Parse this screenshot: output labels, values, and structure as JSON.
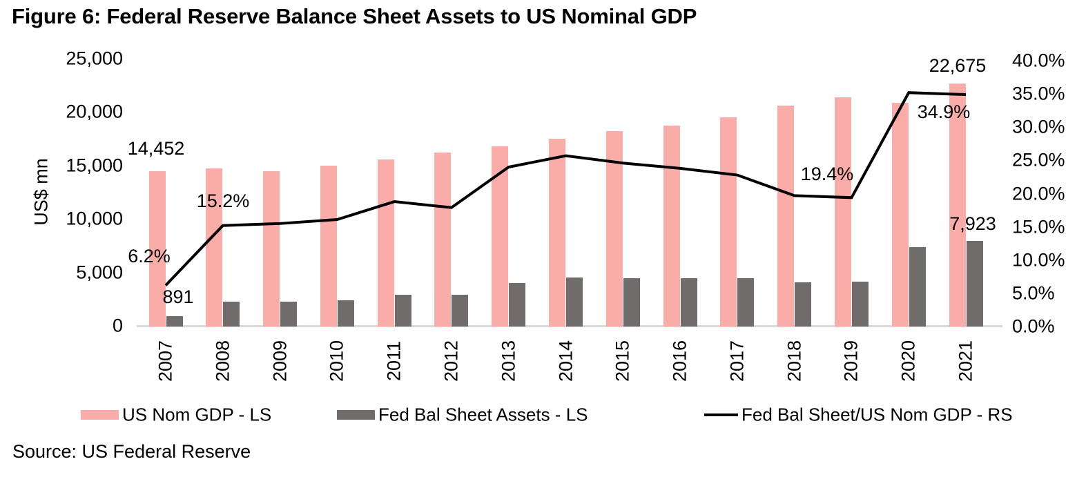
{
  "title": "Figure 6: Federal Reserve Balance Sheet Assets to US Nominal GDP",
  "source": "Source: US Federal Reserve",
  "legend": [
    {
      "label": "US Nom GDP - LS",
      "swatch": "bar",
      "color": "#faaca8"
    },
    {
      "label": "Fed Bal Sheet Assets - LS",
      "swatch": "bar",
      "color": "#706c6c"
    },
    {
      "label": "Fed Bal Sheet/US Nom GDP - RS",
      "swatch": "line",
      "color": "#000000"
    }
  ],
  "chart_data": {
    "type": "bar",
    "subtype": "combo-bar-line-dual-axis",
    "categories": [
      "2007",
      "2008",
      "2009",
      "2010",
      "2011",
      "2012",
      "2013",
      "2014",
      "2015",
      "2016",
      "2017",
      "2018",
      "2019",
      "2020",
      "2021"
    ],
    "series": [
      {
        "name": "US Nom GDP - LS",
        "type": "bar",
        "axis": "left",
        "color": "#faaca8",
        "values": [
          14452,
          14713,
          14449,
          14992,
          15543,
          16197,
          16785,
          17527,
          18225,
          18715,
          19519,
          20580,
          21381,
          20894,
          22675
        ]
      },
      {
        "name": "Fed Bal Sheet Assets - LS",
        "type": "bar",
        "axis": "left",
        "color": "#706c6c",
        "values": [
          891,
          2239,
          2234,
          2421,
          2926,
          2907,
          4033,
          4498,
          4487,
          4451,
          4449,
          4058,
          4166,
          7363,
          7923
        ]
      },
      {
        "name": "Fed Bal Sheet/US Nom GDP - RS",
        "type": "line",
        "axis": "right",
        "color": "#000000",
        "values": [
          6.2,
          15.2,
          15.5,
          16.1,
          18.8,
          17.9,
          24.0,
          25.7,
          24.6,
          23.8,
          22.8,
          19.7,
          19.4,
          35.2,
          34.9
        ]
      }
    ],
    "left_axis": {
      "label": "US$ mn",
      "min": 0,
      "max": 25000,
      "step": 5000,
      "tick_labels": [
        "0",
        "5,000",
        "10,000",
        "15,000",
        "20,000",
        "25,000"
      ]
    },
    "right_axis": {
      "min": 0,
      "max": 40,
      "step": 5,
      "tick_labels": [
        "0.0%",
        "5.0%",
        "10.0%",
        "15.0%",
        "20.0%",
        "25.0%",
        "30.0%",
        "35.0%",
        "40.0%"
      ]
    },
    "grid": false,
    "legend_position": "bottom",
    "annotations": [
      {
        "text": "14,452",
        "year": "2007",
        "series": "US Nom GDP - LS"
      },
      {
        "text": "891",
        "year": "2007",
        "series": "Fed Bal Sheet Assets - LS"
      },
      {
        "text": "6.2%",
        "year": "2007",
        "series": "Fed Bal Sheet/US Nom GDP - RS"
      },
      {
        "text": "15.2%",
        "year": "2008",
        "series": "Fed Bal Sheet/US Nom GDP - RS"
      },
      {
        "text": "19.4%",
        "year": "2019",
        "series": "Fed Bal Sheet/US Nom GDP - RS"
      },
      {
        "text": "34.9%",
        "year": "2021",
        "series": "Fed Bal Sheet/US Nom GDP - RS"
      },
      {
        "text": "22,675",
        "year": "2021",
        "series": "US Nom GDP - LS"
      },
      {
        "text": "7,923",
        "year": "2021",
        "series": "Fed Bal Sheet Assets - LS"
      }
    ]
  }
}
